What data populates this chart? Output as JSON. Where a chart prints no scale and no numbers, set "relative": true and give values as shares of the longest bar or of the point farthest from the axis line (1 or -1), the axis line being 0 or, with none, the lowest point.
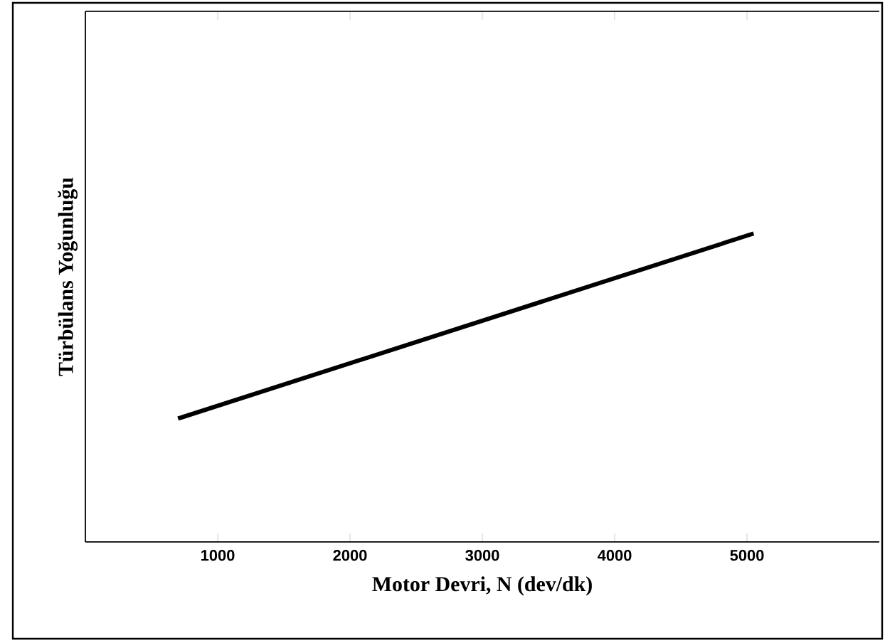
{
  "chart_data": {
    "type": "line",
    "xlabel": "Motor Devri, N (dev/dk)",
    "ylabel": "Türbülans Yoğunluğu",
    "relative": true,
    "xlim": [
      0,
      6000
    ],
    "xticks": [
      1000,
      2000,
      3000,
      4000,
      5000
    ],
    "series": [
      {
        "color": "#000000",
        "x": [
          700,
          5050
        ],
        "values": [
          0.4,
          1
        ]
      }
    ]
  }
}
